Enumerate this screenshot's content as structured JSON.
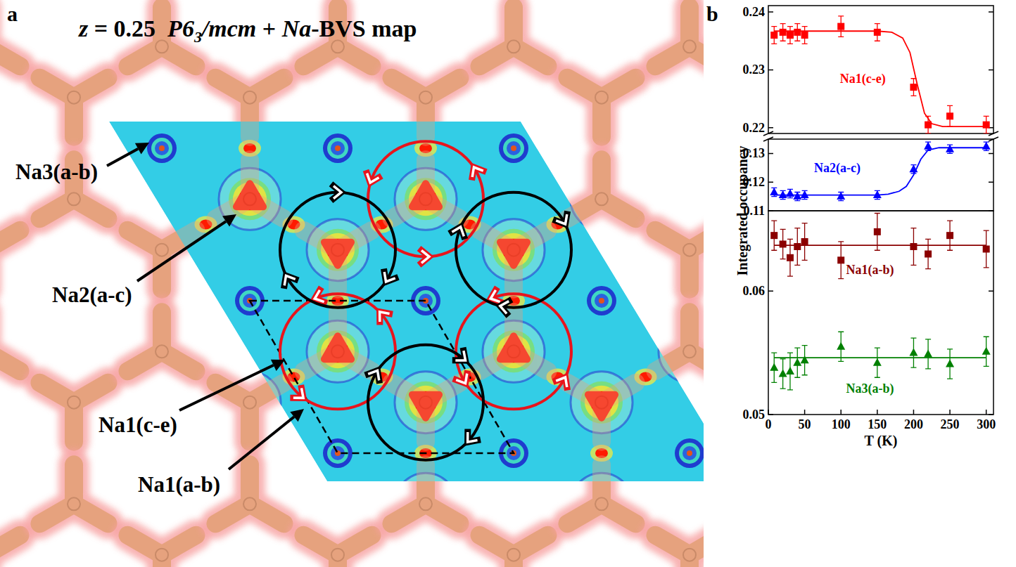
{
  "panel_labels": [
    "a",
    "b"
  ],
  "diagram": {
    "title_parts": [
      "z = 0.25  ",
      "P6",
      "3",
      "/mcm",
      " + ",
      "Na",
      "-BVS map"
    ],
    "site_labels": [
      "Na3(a-b)",
      "Na2(a-c)",
      "Na1(c-e)",
      "Na1(a-b)"
    ]
  },
  "chart_data": [
    {
      "type": "scatter",
      "ylabel": "Integrated occupancy",
      "xlim": [
        0,
        310
      ],
      "ylim": [
        0.219,
        0.2411
      ],
      "yticks": [
        0.22,
        0.23,
        0.24
      ],
      "tick_labels": "y",
      "x": [
        8,
        20,
        30,
        40,
        50,
        100,
        150,
        200,
        220,
        250,
        300
      ],
      "series": [
        {
          "name": "Na1(c-e)",
          "color": "#ff0000",
          "marker": "square",
          "values": [
            0.236,
            0.2365,
            0.236,
            0.2365,
            0.236,
            0.2375,
            0.2365,
            0.227,
            0.2205,
            0.222,
            0.2205
          ],
          "errors": [
            0.0015,
            0.0015,
            0.0015,
            0.0015,
            0.0015,
            0.0018,
            0.0015,
            0.0015,
            0.0015,
            0.0018,
            0.0015
          ],
          "fit": {
            "x": [
              8,
              150,
              170,
              185,
              195,
              205,
              215,
              225,
              240,
              300
            ],
            "values": [
              0.2367,
              0.2367,
              0.2365,
              0.2355,
              0.233,
              0.2275,
              0.2225,
              0.2207,
              0.2202,
              0.2202
            ]
          }
        }
      ]
    },
    {
      "type": "scatter",
      "xlim": [
        0,
        310
      ],
      "ylim": [
        0.11,
        0.135
      ],
      "yticks": [
        0.11,
        0.12,
        0.13
      ],
      "tick_labels": "y",
      "x": [
        8,
        20,
        30,
        40,
        50,
        100,
        150,
        200,
        220,
        250,
        300
      ],
      "series": [
        {
          "name": "Na2(a-c)",
          "color": "#0000ff",
          "marker": "triangle",
          "values": [
            0.1165,
            0.1155,
            0.116,
            0.115,
            0.1155,
            0.115,
            0.1155,
            0.1245,
            0.1325,
            0.1315,
            0.1325
          ],
          "errors": [
            0.0015,
            0.0015,
            0.0015,
            0.0015,
            0.0015,
            0.0015,
            0.0015,
            0.0015,
            0.0015,
            0.0015,
            0.0015
          ],
          "fit": {
            "x": [
              8,
              150,
              165,
              180,
              190,
              200,
              210,
              220,
              235,
              300
            ],
            "values": [
              0.1155,
              0.1155,
              0.1158,
              0.1168,
              0.1185,
              0.1225,
              0.128,
              0.1312,
              0.132,
              0.132
            ]
          }
        }
      ]
    },
    {
      "type": "scatter",
      "xlabel": "T (K)",
      "xlim": [
        0,
        310
      ],
      "ylim": [
        0.05,
        0.0665
      ],
      "xticks": [
        0,
        50,
        100,
        150,
        200,
        250,
        300
      ],
      "yticks": [
        0.05,
        0.06
      ],
      "x": [
        8,
        20,
        30,
        40,
        50,
        100,
        150,
        200,
        220,
        250,
        300
      ],
      "series": [
        {
          "name": "Na1(a-b)",
          "color": "#8b0000",
          "marker": "square",
          "values": [
            0.0645,
            0.0638,
            0.0627,
            0.0636,
            0.064,
            0.0625,
            0.0648,
            0.0636,
            0.063,
            0.0645,
            0.0634
          ],
          "errors": [
            0.0012,
            0.0012,
            0.0015,
            0.0015,
            0.0015,
            0.0015,
            0.0015,
            0.0015,
            0.0012,
            0.0012,
            0.0015
          ],
          "fit": {
            "x": [
              8,
              300
            ],
            "values": [
              0.0637,
              0.0637
            ]
          }
        },
        {
          "name": "Na3(a-b)",
          "color": "#008000",
          "marker": "triangle",
          "values": [
            0.0538,
            0.0533,
            0.0535,
            0.0542,
            0.0544,
            0.0555,
            0.0542,
            0.055,
            0.0549,
            0.0541,
            0.0551
          ],
          "errors": [
            0.0012,
            0.0012,
            0.0015,
            0.0012,
            0.0012,
            0.0012,
            0.0012,
            0.0012,
            0.0012,
            0.0012,
            0.0012
          ],
          "fit": {
            "x": [
              8,
              300
            ],
            "values": [
              0.0546,
              0.0546
            ]
          }
        }
      ]
    }
  ]
}
